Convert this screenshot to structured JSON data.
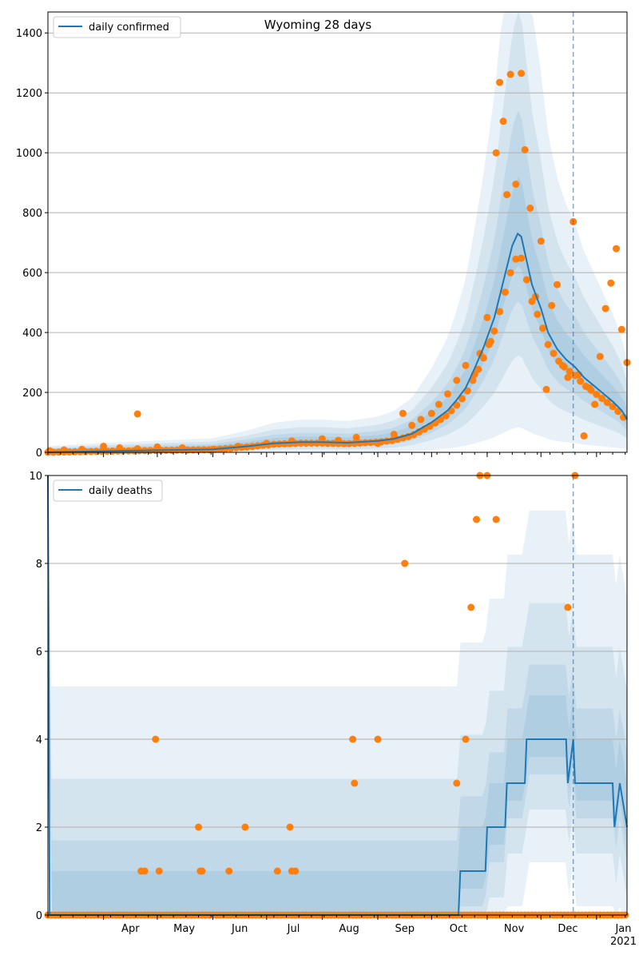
{
  "chart_data": [
    {
      "type": "line",
      "title": "Wyoming 28 days",
      "xlabel": "",
      "ylabel": "",
      "x_range": [
        "2020-03-01",
        "2021-01-18"
      ],
      "ylim": [
        0,
        1470
      ],
      "y_ticks": [
        0,
        200,
        400,
        600,
        800,
        1000,
        1200,
        1400
      ],
      "grid": "horizontal",
      "legend": "top-left",
      "vline_date": "2020-12-19",
      "series": [
        {
          "name": "daily confirmed",
          "color": "#1f77b4",
          "x": [
            "2020-03-01",
            "2020-04-01",
            "2020-05-01",
            "2020-06-01",
            "2020-06-20",
            "2020-07-05",
            "2020-07-20",
            "2020-08-01",
            "2020-08-15",
            "2020-09-01",
            "2020-09-10",
            "2020-09-20",
            "2020-10-01",
            "2020-10-10",
            "2020-10-15",
            "2020-10-20",
            "2020-10-25",
            "2020-10-30",
            "2020-11-05",
            "2020-11-10",
            "2020-11-15",
            "2020-11-18",
            "2020-11-20",
            "2020-11-23",
            "2020-11-26",
            "2020-12-01",
            "2020-12-05",
            "2020-12-10",
            "2020-12-15",
            "2020-12-20",
            "2020-12-25",
            "2020-12-30",
            "2021-01-05",
            "2021-01-10",
            "2021-01-15",
            "2021-01-18"
          ],
          "values": [
            0,
            4,
            7,
            10,
            20,
            30,
            34,
            34,
            32,
            38,
            45,
            62,
            100,
            140,
            175,
            215,
            280,
            350,
            450,
            570,
            690,
            730,
            720,
            640,
            560,
            480,
            400,
            345,
            310,
            285,
            250,
            225,
            195,
            170,
            140,
            110
          ]
        },
        {
          "name": "",
          "color": "#ff7f0e",
          "x": [
            "2020-03-02",
            "2020-03-10",
            "2020-03-20",
            "2020-04-01",
            "2020-04-10",
            "2020-04-20",
            "2020-05-01",
            "2020-05-15",
            "2020-06-01",
            "2020-06-15",
            "2020-07-01",
            "2020-07-15",
            "2020-08-01",
            "2020-08-10",
            "2020-08-20",
            "2020-09-01",
            "2020-09-10",
            "2020-09-15",
            "2020-09-20",
            "2020-09-25",
            "2020-10-01",
            "2020-10-05",
            "2020-10-10",
            "2020-10-15",
            "2020-10-20",
            "2020-10-25",
            "2020-10-28",
            "2020-11-01",
            "2020-11-03",
            "2020-11-06",
            "2020-11-08",
            "2020-11-10",
            "2020-11-12",
            "2020-11-14",
            "2020-11-17",
            "2020-11-20",
            "2020-11-22",
            "2020-11-25",
            "2020-11-28",
            "2020-12-01",
            "2020-12-04",
            "2020-12-07",
            "2020-12-10",
            "2020-12-13",
            "2020-12-16",
            "2020-12-19",
            "2020-12-22",
            "2020-12-25",
            "2020-12-28",
            "2020-12-31",
            "2021-01-03",
            "2021-01-06",
            "2021-01-09",
            "2021-01-12",
            "2021-01-15",
            "2021-01-18",
            "2020-04-20"
          ],
          "values": [
            5,
            8,
            10,
            20,
            15,
            12,
            18,
            15,
            10,
            20,
            30,
            38,
            45,
            40,
            50,
            30,
            60,
            130,
            90,
            110,
            130,
            160,
            195,
            240,
            290,
            260,
            330,
            450,
            370,
            1000,
            1235,
            1105,
            860,
            1262,
            895,
            1265,
            1010,
            815,
            520,
            705,
            210,
            490,
            560,
            290,
            250,
            770,
            260,
            55,
            215,
            160,
            320,
            480,
            565,
            680,
            410,
            300,
            128
          ]
        }
      ]
    },
    {
      "type": "line",
      "title": "",
      "xlabel": "",
      "ylabel": "",
      "x_range": [
        "2020-03-01",
        "2021-01-18"
      ],
      "ylim": [
        0,
        10
      ],
      "y_ticks": [
        0,
        2,
        4,
        6,
        8,
        10
      ],
      "grid": "horizontal",
      "legend": "top-left",
      "vline_date": "2020-12-19",
      "x_ticks": [
        "Apr",
        "May",
        "Jun",
        "Jul",
        "Aug",
        "Sep",
        "Oct",
        "Nov",
        "Dec",
        "Jan"
      ],
      "x_year": "2021",
      "series": [
        {
          "name": "daily deaths",
          "color": "#1f77b4",
          "x": [
            "2020-03-01",
            "2020-03-02",
            "2020-10-16",
            "2020-10-17",
            "2020-10-31",
            "2020-11-01",
            "2020-11-11",
            "2020-11-12",
            "2020-11-22",
            "2020-11-23",
            "2020-11-29",
            "2020-12-15",
            "2020-12-16",
            "2020-12-19",
            "2020-12-20",
            "2021-01-10",
            "2021-01-11",
            "2021-01-14",
            "2021-01-18"
          ],
          "values": [
            10,
            0,
            0,
            1,
            1,
            2,
            2,
            3,
            3,
            4,
            4,
            4,
            3,
            4,
            3,
            3,
            2,
            3,
            2
          ]
        },
        {
          "name": "",
          "color": "#ff7f0e",
          "x": [
            "2020-04-22",
            "2020-04-24",
            "2020-04-30",
            "2020-05-02",
            "2020-05-24",
            "2020-05-25",
            "2020-05-26",
            "2020-06-10",
            "2020-06-19",
            "2020-07-07",
            "2020-07-14",
            "2020-07-15",
            "2020-07-17",
            "2020-08-18",
            "2020-08-19",
            "2020-09-01",
            "2020-09-16",
            "2020-10-20",
            "2020-10-23",
            "2020-10-26",
            "2020-10-28",
            "2020-11-01",
            "2020-11-06",
            "2020-12-16",
            "2020-12-20",
            "2020-10-15"
          ],
          "values": [
            1,
            1,
            4,
            1,
            2,
            1,
            1,
            1,
            2,
            1,
            2,
            1,
            1,
            4,
            3,
            4,
            8,
            4,
            7,
            9,
            10,
            10,
            9,
            7,
            10,
            3
          ]
        }
      ]
    }
  ]
}
